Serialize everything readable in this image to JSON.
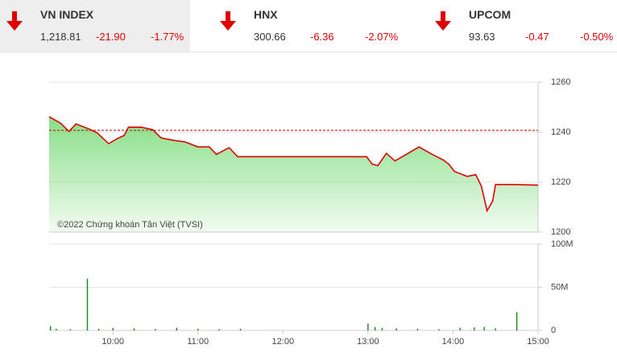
{
  "tickers": [
    {
      "name": "VN INDEX",
      "value": "1,218.81",
      "change": "-21.90",
      "percent": "-1.77%"
    },
    {
      "name": "HNX",
      "value": "300.66",
      "change": "-6.36",
      "percent": "-2.07%"
    },
    {
      "name": "UPCOM",
      "value": "93.63",
      "change": "-0.47",
      "percent": "-0.50%"
    }
  ],
  "chart_data": [
    {
      "type": "line",
      "annotation": "©2022 Chứng khoán Tân Việt (TVSI)",
      "x": [
        555,
        563,
        569,
        574,
        583,
        589,
        597,
        603,
        608,
        611,
        620,
        628,
        634,
        643,
        651,
        660,
        668,
        673,
        682,
        688,
        779,
        783,
        787,
        793,
        799,
        807,
        816,
        824,
        833,
        837,
        841,
        850,
        856,
        860,
        864,
        868,
        870,
        884,
        900
      ],
      "series": [
        {
          "name": "VN INDEX",
          "color": "#e00000",
          "values": [
            1246.2,
            1243.6,
            1240.3,
            1243.3,
            1241.3,
            1239.7,
            1235.4,
            1237.4,
            1238.7,
            1242,
            1242,
            1241,
            1237.7,
            1236.7,
            1236.1,
            1234.1,
            1234.1,
            1231.1,
            1233.8,
            1230.2,
            1230.2,
            1227.2,
            1226.6,
            1231.5,
            1228.5,
            1231.1,
            1234.1,
            1231.5,
            1228.9,
            1227.2,
            1224.3,
            1222.3,
            1223,
            1218.4,
            1208.5,
            1212.5,
            1219,
            1219,
            1218.81
          ]
        }
      ],
      "reference": 1240.71,
      "reference_color": "#cc0000",
      "area_color": "#5fd35f",
      "xlim": [
        555,
        900
      ],
      "ylim": [
        1200,
        1260
      ],
      "yticks": [
        1200,
        1220,
        1240,
        1260
      ],
      "grid": true
    },
    {
      "type": "bar",
      "color": "#138a13",
      "x": [
        556,
        560,
        570,
        582,
        590,
        600,
        615,
        630,
        645,
        660,
        675,
        690,
        780,
        785,
        790,
        800,
        815,
        830,
        845,
        855,
        862,
        870,
        885
      ],
      "values": [
        5000000,
        2000000,
        1500000,
        60000000,
        2000000,
        3000000,
        2500000,
        1800000,
        3000000,
        2000000,
        1500000,
        2000000,
        8000000,
        4000000,
        3000000,
        2500000,
        2000000,
        1500000,
        3000000,
        3500000,
        4000000,
        2500000,
        21000000
      ],
      "xlim": [
        555,
        900
      ],
      "xticks": [
        {
          "value": 600,
          "label": "10:00"
        },
        {
          "value": 660,
          "label": "11:00"
        },
        {
          "value": 720,
          "label": "12:00"
        },
        {
          "value": 780,
          "label": "13:00"
        },
        {
          "value": 840,
          "label": "14:00"
        },
        {
          "value": 900,
          "label": "15:00"
        }
      ],
      "ylim": [
        0,
        100000000
      ],
      "yticks": [
        0,
        {
          "value": 50000000,
          "label": "50M"
        },
        {
          "value": 100000000,
          "label": "100M"
        }
      ],
      "grid": true
    }
  ]
}
